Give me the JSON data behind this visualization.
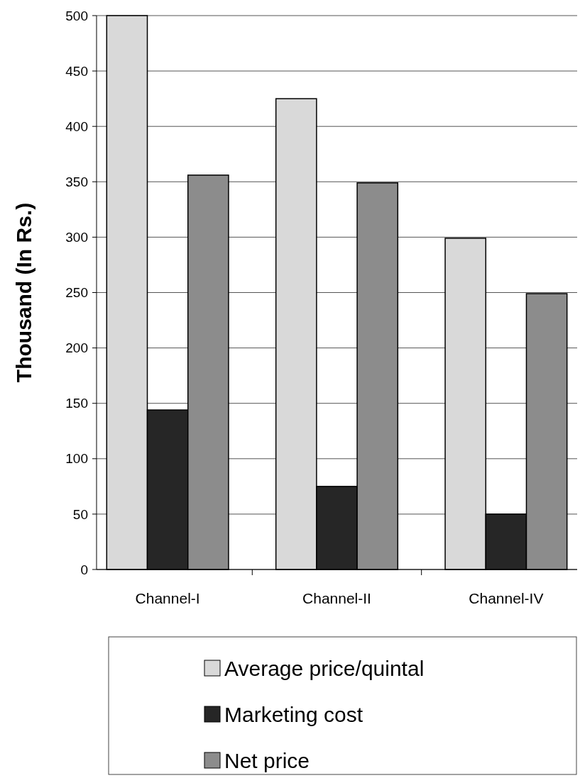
{
  "chart_data": {
    "type": "bar",
    "ylabel": "Thousand (In Rs.)",
    "categories": [
      "Channel-I",
      "Channel-II",
      "Channel-IV"
    ],
    "series": [
      {
        "name": "Average price/quintal",
        "color": "#d9d9d9",
        "values": [
          500,
          425,
          299
        ]
      },
      {
        "name": "Marketing cost",
        "color": "#262626",
        "values": [
          144,
          75,
          50
        ]
      },
      {
        "name": "Net price",
        "color": "#8c8c8c",
        "values": [
          356,
          349,
          249
        ]
      }
    ],
    "ylim": [
      0,
      500
    ],
    "yticks": [
      0,
      50,
      100,
      150,
      200,
      250,
      300,
      350,
      400,
      450,
      500
    ],
    "grid": "y",
    "legend": "bottom"
  }
}
